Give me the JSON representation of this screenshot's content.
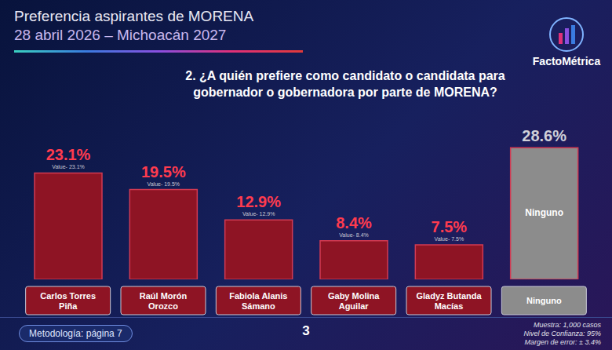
{
  "chart_data": {
    "type": "bar",
    "title": "Preferencia aspirantes de MORENA",
    "subtitle": "28 abril 2026 – Michoacán 2027",
    "question": "2. ¿A quién prefiere como candidato o candidata para gobernador o gobernadora por parte de MORENA?",
    "brand": "FactoMétrica",
    "categories": [
      "Carlos Torres Piña",
      "Raúl Morón Orozco",
      "Fabiola Alanis Sámano",
      "Gaby Molina Aguilar",
      "Gladyz Butanda Macías",
      "Ninguno"
    ],
    "values": [
      23.1,
      19.5,
      12.9,
      8.4,
      7.5,
      28.6
    ],
    "value_labels": [
      "23.1%",
      "19.5%",
      "12.9%",
      "8.4%",
      "7.5%",
      "28.6%"
    ],
    "secondary_labels": [
      "Value- 23.1%",
      "Value- 19.5%",
      "Value- 12.9%",
      "Value- 8.4%",
      "Value- 7.5%",
      null
    ],
    "inner_labels": [
      null,
      null,
      null,
      null,
      null,
      "Ninguno"
    ],
    "colors": [
      "#8e1424",
      "#8e1424",
      "#8e1424",
      "#8e1424",
      "#8e1424",
      "#8c8c8c"
    ],
    "ylim": [
      0,
      30
    ],
    "tick_labels": false,
    "data_labels": true,
    "footer": {
      "methodology": "Metodología: página 7",
      "page": "3",
      "notes": [
        "Muestra: 1,000 casos",
        "Nivel de Confianza: 95%",
        "Margen de error: ± 3.4%"
      ]
    }
  }
}
